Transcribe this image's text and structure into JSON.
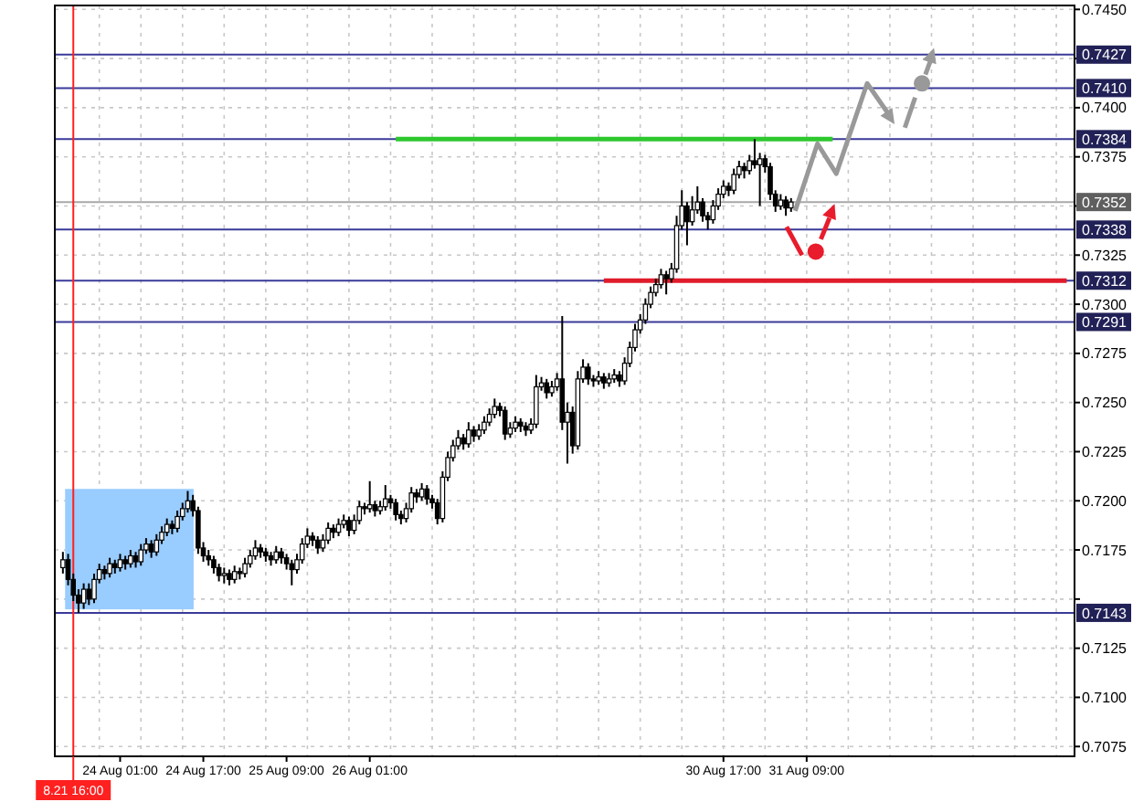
{
  "chart_data": {
    "type": "candlestick",
    "categories": [
      null,
      null,
      "8.21 16:00",
      null,
      null,
      null,
      null,
      null,
      null,
      null,
      null,
      "24 Aug 01:00",
      null,
      null,
      null,
      null,
      null,
      null,
      null,
      null,
      null,
      null,
      null,
      null,
      null,
      null,
      null,
      "24 Aug 17:00",
      null,
      null,
      null,
      null,
      null,
      null,
      null,
      null,
      null,
      null,
      null,
      null,
      null,
      null,
      null,
      "25 Aug 09:00",
      null,
      null,
      null,
      null,
      null,
      null,
      null,
      null,
      null,
      null,
      null,
      null,
      null,
      null,
      null,
      "26 Aug 01:00",
      null,
      null,
      null,
      null,
      null,
      null,
      null,
      null,
      null,
      null,
      null,
      null,
      null,
      null,
      null,
      null,
      null,
      null,
      null,
      null,
      null,
      null,
      null,
      null,
      null,
      null,
      null,
      null,
      null,
      null,
      null,
      null,
      null,
      null,
      null,
      null,
      null,
      null,
      null,
      null,
      null,
      null,
      null,
      null,
      null,
      null,
      null,
      null,
      null,
      null,
      null,
      null,
      null,
      null,
      null,
      null,
      null,
      null,
      null,
      null,
      null,
      null,
      null,
      null,
      null,
      null,
      null,
      "30 Aug 17:00",
      null,
      null,
      null,
      null,
      null,
      null,
      null,
      null,
      null,
      null,
      null,
      null,
      null,
      null,
      null,
      "31 Aug 09:00",
      null,
      null,
      null,
      null,
      null,
      null,
      null,
      null,
      null,
      null,
      null,
      null,
      null,
      null,
      null,
      null,
      null,
      null,
      null,
      null,
      null,
      null,
      null,
      null,
      null,
      null,
      null,
      null,
      null,
      null,
      null,
      null,
      null,
      null,
      null,
      null,
      null,
      null,
      null,
      null,
      null,
      null,
      null,
      null,
      null,
      null,
      null,
      null,
      null,
      null,
      null
    ],
    "ohlc": [
      [
        0.7166,
        0.7174,
        0.7163,
        0.717
      ],
      [
        0.717,
        0.7173,
        0.7157,
        0.716
      ],
      [
        0.716,
        0.7163,
        0.7149,
        0.7152
      ],
      [
        0.7152,
        0.7155,
        0.7143,
        0.7148
      ],
      [
        0.7148,
        0.7158,
        0.7145,
        0.7155
      ],
      [
        0.7155,
        0.7158,
        0.7147,
        0.715
      ],
      [
        0.715,
        0.7163,
        0.7148,
        0.716
      ],
      [
        0.716,
        0.7168,
        0.7158,
        0.7165
      ],
      [
        0.7165,
        0.7167,
        0.716,
        0.7163
      ],
      [
        0.7163,
        0.7171,
        0.7161,
        0.7168
      ],
      [
        0.7168,
        0.717,
        0.7163,
        0.7166
      ],
      [
        0.7166,
        0.7173,
        0.7164,
        0.717
      ],
      [
        0.717,
        0.7172,
        0.7165,
        0.7168
      ],
      [
        0.7168,
        0.7175,
        0.7166,
        0.7172
      ],
      [
        0.7172,
        0.7174,
        0.7166,
        0.7169
      ],
      [
        0.7169,
        0.7178,
        0.7167,
        0.7175
      ],
      [
        0.7175,
        0.7181,
        0.7173,
        0.7178
      ],
      [
        0.7178,
        0.718,
        0.7171,
        0.7174
      ],
      [
        0.7174,
        0.7183,
        0.7172,
        0.718
      ],
      [
        0.718,
        0.7187,
        0.7178,
        0.7184
      ],
      [
        0.7184,
        0.7191,
        0.7182,
        0.7188
      ],
      [
        0.7188,
        0.719,
        0.7183,
        0.7186
      ],
      [
        0.7186,
        0.7195,
        0.7184,
        0.7192
      ],
      [
        0.7192,
        0.7199,
        0.719,
        0.7196
      ],
      [
        0.7196,
        0.7205,
        0.7194,
        0.72
      ],
      [
        0.72,
        0.7203,
        0.7192,
        0.7195
      ],
      [
        0.7195,
        0.7197,
        0.7173,
        0.7176
      ],
      [
        0.7176,
        0.7179,
        0.7169,
        0.7172
      ],
      [
        0.7172,
        0.7175,
        0.7167,
        0.717
      ],
      [
        0.717,
        0.7172,
        0.7163,
        0.7166
      ],
      [
        0.7166,
        0.7168,
        0.7159,
        0.7162
      ],
      [
        0.7162,
        0.7166,
        0.7158,
        0.7163
      ],
      [
        0.7163,
        0.7165,
        0.7157,
        0.716
      ],
      [
        0.716,
        0.7167,
        0.7158,
        0.7164
      ],
      [
        0.7164,
        0.7166,
        0.716,
        0.7163
      ],
      [
        0.7163,
        0.7171,
        0.7161,
        0.7168
      ],
      [
        0.7168,
        0.7175,
        0.7166,
        0.7172
      ],
      [
        0.7172,
        0.718,
        0.717,
        0.7176
      ],
      [
        0.7176,
        0.7178,
        0.7171,
        0.7174
      ],
      [
        0.7174,
        0.7176,
        0.7169,
        0.7172
      ],
      [
        0.7172,
        0.7174,
        0.7167,
        0.717
      ],
      [
        0.717,
        0.7177,
        0.7168,
        0.7174
      ],
      [
        0.7174,
        0.7176,
        0.7168,
        0.7171
      ],
      [
        0.7171,
        0.7173,
        0.7165,
        0.7168
      ],
      [
        0.7168,
        0.717,
        0.7157,
        0.7165
      ],
      [
        0.7165,
        0.7173,
        0.7163,
        0.717
      ],
      [
        0.717,
        0.7181,
        0.7168,
        0.7178
      ],
      [
        0.7178,
        0.7186,
        0.7176,
        0.7182
      ],
      [
        0.7182,
        0.7184,
        0.7177,
        0.718
      ],
      [
        0.718,
        0.7182,
        0.7173,
        0.7176
      ],
      [
        0.7176,
        0.7183,
        0.7174,
        0.718
      ],
      [
        0.718,
        0.7189,
        0.7178,
        0.7186
      ],
      [
        0.7186,
        0.7188,
        0.7181,
        0.7184
      ],
      [
        0.7184,
        0.7191,
        0.7182,
        0.7188
      ],
      [
        0.7188,
        0.7193,
        0.7186,
        0.719
      ],
      [
        0.719,
        0.7192,
        0.7182,
        0.7185
      ],
      [
        0.7185,
        0.7193,
        0.7183,
        0.719
      ],
      [
        0.719,
        0.72,
        0.7188,
        0.7197
      ],
      [
        0.7197,
        0.7199,
        0.7193,
        0.7196
      ],
      [
        0.7196,
        0.721,
        0.7194,
        0.7198
      ],
      [
        0.7198,
        0.72,
        0.7192,
        0.7195
      ],
      [
        0.7195,
        0.72,
        0.7193,
        0.7197
      ],
      [
        0.7197,
        0.7208,
        0.7195,
        0.7201
      ],
      [
        0.7201,
        0.7203,
        0.7196,
        0.7199
      ],
      [
        0.7199,
        0.7201,
        0.719,
        0.7193
      ],
      [
        0.7193,
        0.7195,
        0.7188,
        0.7191
      ],
      [
        0.7191,
        0.7199,
        0.7189,
        0.7196
      ],
      [
        0.7196,
        0.7207,
        0.7194,
        0.7204
      ],
      [
        0.7204,
        0.7206,
        0.7199,
        0.7202
      ],
      [
        0.7202,
        0.7209,
        0.72,
        0.7206
      ],
      [
        0.7206,
        0.7208,
        0.7198,
        0.7201
      ],
      [
        0.7201,
        0.7203,
        0.7196,
        0.7199
      ],
      [
        0.7199,
        0.7201,
        0.7188,
        0.7191
      ],
      [
        0.7191,
        0.7215,
        0.7189,
        0.7212
      ],
      [
        0.7212,
        0.7225,
        0.721,
        0.7222
      ],
      [
        0.7222,
        0.7231,
        0.722,
        0.7228
      ],
      [
        0.7228,
        0.7236,
        0.7226,
        0.7232
      ],
      [
        0.7232,
        0.7234,
        0.7226,
        0.7229
      ],
      [
        0.7229,
        0.724,
        0.7227,
        0.7236
      ],
      [
        0.7236,
        0.7238,
        0.723,
        0.7233
      ],
      [
        0.7233,
        0.7239,
        0.7231,
        0.7236
      ],
      [
        0.7236,
        0.7243,
        0.7234,
        0.724
      ],
      [
        0.724,
        0.7247,
        0.7238,
        0.7244
      ],
      [
        0.7244,
        0.7252,
        0.7242,
        0.7248
      ],
      [
        0.7248,
        0.725,
        0.7243,
        0.7246
      ],
      [
        0.7246,
        0.7248,
        0.7231,
        0.7234
      ],
      [
        0.7234,
        0.724,
        0.7232,
        0.7237
      ],
      [
        0.7237,
        0.7243,
        0.7235,
        0.724
      ],
      [
        0.724,
        0.7242,
        0.7235,
        0.7238
      ],
      [
        0.7238,
        0.724,
        0.7233,
        0.7236
      ],
      [
        0.7236,
        0.7242,
        0.7234,
        0.7239
      ],
      [
        0.7239,
        0.7264,
        0.7237,
        0.7258
      ],
      [
        0.7258,
        0.7263,
        0.7256,
        0.726
      ],
      [
        0.726,
        0.7262,
        0.7252,
        0.7255
      ],
      [
        0.7255,
        0.7261,
        0.7253,
        0.7258
      ],
      [
        0.7258,
        0.7265,
        0.7256,
        0.7262
      ],
      [
        0.7262,
        0.7294,
        0.7236,
        0.724
      ],
      [
        0.724,
        0.725,
        0.7219,
        0.7245
      ],
      [
        0.7245,
        0.7248,
        0.7224,
        0.7228
      ],
      [
        0.7228,
        0.7266,
        0.7226,
        0.7262
      ],
      [
        0.7262,
        0.7272,
        0.726,
        0.7268
      ],
      [
        0.7268,
        0.727,
        0.7259,
        0.7262
      ],
      [
        0.7262,
        0.7264,
        0.7258,
        0.7261
      ],
      [
        0.7261,
        0.7266,
        0.7259,
        0.7263
      ],
      [
        0.7263,
        0.7265,
        0.7257,
        0.726
      ],
      [
        0.726,
        0.7265,
        0.7258,
        0.7262
      ],
      [
        0.7262,
        0.7267,
        0.726,
        0.7264
      ],
      [
        0.7264,
        0.7266,
        0.7258,
        0.7261
      ],
      [
        0.7261,
        0.7273,
        0.7259,
        0.727
      ],
      [
        0.727,
        0.7281,
        0.7268,
        0.7278
      ],
      [
        0.7278,
        0.729,
        0.7276,
        0.7287
      ],
      [
        0.7287,
        0.7295,
        0.7285,
        0.7292
      ],
      [
        0.7292,
        0.7303,
        0.729,
        0.73
      ],
      [
        0.73,
        0.7309,
        0.7298,
        0.7306
      ],
      [
        0.7306,
        0.7313,
        0.7304,
        0.731
      ],
      [
        0.731,
        0.7318,
        0.7308,
        0.7315
      ],
      [
        0.7315,
        0.7317,
        0.7305,
        0.7313
      ],
      [
        0.7313,
        0.7321,
        0.7311,
        0.7318
      ],
      [
        0.7318,
        0.7345,
        0.7316,
        0.734
      ],
      [
        0.734,
        0.7358,
        0.7338,
        0.735
      ],
      [
        0.735,
        0.7352,
        0.733,
        0.7342
      ],
      [
        0.7342,
        0.7355,
        0.734,
        0.7348
      ],
      [
        0.7348,
        0.736,
        0.7346,
        0.7352
      ],
      [
        0.7352,
        0.7354,
        0.7342,
        0.7345
      ],
      [
        0.7345,
        0.7347,
        0.7338,
        0.7343
      ],
      [
        0.7343,
        0.7353,
        0.7341,
        0.735
      ],
      [
        0.735,
        0.7359,
        0.7348,
        0.7356
      ],
      [
        0.7356,
        0.7363,
        0.7354,
        0.736
      ],
      [
        0.736,
        0.7362,
        0.7355,
        0.7358
      ],
      [
        0.7358,
        0.7369,
        0.7356,
        0.7366
      ],
      [
        0.7366,
        0.7373,
        0.7364,
        0.737
      ],
      [
        0.737,
        0.7372,
        0.7364,
        0.7368
      ],
      [
        0.7368,
        0.7376,
        0.7366,
        0.7373
      ],
      [
        0.7373,
        0.7384,
        0.7369,
        0.7371
      ],
      [
        0.7371,
        0.7377,
        0.735,
        0.7374
      ],
      [
        0.7374,
        0.7376,
        0.7367,
        0.737
      ],
      [
        0.737,
        0.7372,
        0.7353,
        0.7356
      ],
      [
        0.7356,
        0.7358,
        0.7347,
        0.735
      ],
      [
        0.735,
        0.7356,
        0.7348,
        0.7353
      ],
      [
        0.7353,
        0.7355,
        0.7345,
        0.7349
      ],
      [
        0.7349,
        0.7354,
        0.7347,
        0.7352
      ],
      null,
      null,
      null,
      null,
      null,
      null,
      null,
      null,
      null,
      null,
      null,
      null,
      null,
      null,
      null,
      null,
      null,
      null,
      null,
      null,
      null,
      null,
      null,
      null,
      null,
      null,
      null,
      null,
      null,
      null,
      null,
      null,
      null,
      null,
      null,
      null,
      null,
      null,
      null,
      null,
      null,
      null,
      null,
      null,
      null,
      null,
      null,
      null,
      null,
      null,
      null,
      null,
      null,
      null
    ],
    "ylim": [
      0.707,
      0.7452
    ],
    "yticks": [
      {
        "value": 0.745,
        "label": "0.7450"
      },
      {
        "value": 0.7425,
        "label": null
      },
      {
        "value": 0.74,
        "label": "0.7400"
      },
      {
        "value": 0.7375,
        "label": "0.7375"
      },
      {
        "value": 0.735,
        "label": null
      },
      {
        "value": 0.7325,
        "label": "0.7325"
      },
      {
        "value": 0.73,
        "label": "0.7300"
      },
      {
        "value": 0.7275,
        "label": "0.7275"
      },
      {
        "value": 0.725,
        "label": "0.7250"
      },
      {
        "value": 0.7225,
        "label": "0.7225"
      },
      {
        "value": 0.72,
        "label": "0.7200"
      },
      {
        "value": 0.7175,
        "label": "0.7175"
      },
      {
        "value": 0.715,
        "label": null
      },
      {
        "value": 0.7125,
        "label": "0.7125"
      },
      {
        "value": 0.71,
        "label": "0.7100"
      },
      {
        "value": 0.7075,
        "label": "0.7075"
      }
    ],
    "grid": true,
    "ref_lines": [
      {
        "axis": "y",
        "value": 0.7427,
        "label": "0.7427",
        "color": "#3a3a9a"
      },
      {
        "axis": "y",
        "value": 0.741,
        "label": "0.7410",
        "color": "#3a3a9a"
      },
      {
        "axis": "y",
        "value": 0.7384,
        "label": "0.7384",
        "color": "#3a3a9a"
      },
      {
        "axis": "y",
        "value": 0.7352,
        "label": "0.7352",
        "color": "#a8a8a8"
      },
      {
        "axis": "y",
        "value": 0.7338,
        "label": "0.7338",
        "color": "#3a3a9a"
      },
      {
        "axis": "y",
        "value": 0.7312,
        "label": "0.7312",
        "color": "#3a3a9a"
      },
      {
        "axis": "y",
        "value": 0.7291,
        "label": "0.7291",
        "color": "#3a3a9a"
      },
      {
        "axis": "y",
        "value": 0.7143,
        "label": "0.7143",
        "color": "#3a3a9a"
      },
      {
        "axis": "x",
        "value": "8.21 16:00",
        "color": "#ff2020"
      }
    ],
    "series": [
      {
        "type": "line",
        "color": "#2ec82e",
        "values": [
          null,
          null,
          null,
          null,
          null,
          null,
          null,
          null,
          null,
          null,
          null,
          null,
          null,
          null,
          null,
          null,
          null,
          null,
          null,
          null,
          null,
          null,
          null,
          null,
          null,
          null,
          null,
          null,
          null,
          null,
          null,
          null,
          null,
          null,
          null,
          null,
          null,
          null,
          null,
          null,
          null,
          null,
          null,
          null,
          null,
          null,
          null,
          null,
          null,
          null,
          null,
          null,
          null,
          null,
          null,
          null,
          null,
          null,
          null,
          null,
          null,
          null,
          null,
          null,
          0.7384,
          0.7384,
          0.7384,
          0.7384,
          0.7384,
          0.7384,
          0.7384,
          0.7384,
          0.7384,
          0.7384,
          0.7384,
          0.7384,
          0.7384,
          0.7384,
          0.7384,
          0.7384,
          0.7384,
          0.7384,
          0.7384,
          0.7384,
          0.7384,
          0.7384,
          0.7384,
          0.7384,
          0.7384,
          0.7384,
          0.7384,
          0.7384,
          0.7384,
          0.7384,
          0.7384,
          0.7384,
          0.7384,
          0.7384,
          0.7384,
          0.7384,
          0.7384,
          0.7384,
          0.7384,
          0.7384,
          0.7384,
          0.7384,
          0.7384,
          0.7384,
          0.7384,
          0.7384,
          0.7384,
          0.7384,
          0.7384,
          0.7384,
          0.7384,
          0.7384,
          0.7384,
          0.7384,
          0.7384,
          0.7384,
          0.7384,
          0.7384,
          0.7384,
          0.7384,
          0.7384,
          0.7384,
          0.7384,
          0.7384,
          0.7384,
          0.7384,
          0.7384,
          0.7384,
          0.7384,
          0.7384,
          0.7384,
          0.7384,
          0.7384,
          0.7384,
          0.7384,
          0.7384,
          0.7384,
          0.7384,
          0.7384,
          0.7384,
          0.7384,
          0.7384,
          0.7384,
          0.7384,
          0.7384,
          null,
          null,
          null,
          null,
          null,
          null,
          null,
          null,
          null,
          null,
          null,
          null,
          null,
          null,
          null,
          null,
          null,
          null,
          null,
          null,
          null,
          null,
          null,
          null,
          null,
          null,
          null,
          null,
          null,
          null,
          null,
          null,
          null,
          null,
          null,
          null,
          null,
          null,
          null,
          null,
          null,
          null,
          null,
          null,
          null,
          null
        ]
      },
      {
        "type": "line",
        "color": "#e01b2b",
        "values": [
          null,
          null,
          null,
          null,
          null,
          null,
          null,
          null,
          null,
          null,
          null,
          null,
          null,
          null,
          null,
          null,
          null,
          null,
          null,
          null,
          null,
          null,
          null,
          null,
          null,
          null,
          null,
          null,
          null,
          null,
          null,
          null,
          null,
          null,
          null,
          null,
          null,
          null,
          null,
          null,
          null,
          null,
          null,
          null,
          null,
          null,
          null,
          null,
          null,
          null,
          null,
          null,
          null,
          null,
          null,
          null,
          null,
          null,
          null,
          null,
          null,
          null,
          null,
          null,
          null,
          null,
          null,
          null,
          null,
          null,
          null,
          null,
          null,
          null,
          null,
          null,
          null,
          null,
          null,
          null,
          null,
          null,
          null,
          null,
          null,
          null,
          null,
          null,
          null,
          null,
          null,
          null,
          null,
          null,
          null,
          null,
          null,
          null,
          null,
          null,
          null,
          null,
          null,
          null,
          0.7312,
          0.7312,
          0.7312,
          0.7312,
          0.7312,
          0.7312,
          0.7312,
          0.7312,
          0.7312,
          0.7312,
          0.7312,
          0.7312,
          0.7312,
          0.7312,
          0.7312,
          0.7312,
          0.7312,
          0.7312,
          0.7312,
          0.7312,
          0.7312,
          0.7312,
          0.7312,
          0.7312,
          0.7312,
          0.7312,
          0.7312,
          0.7312,
          0.7312,
          0.7312,
          0.7312,
          0.7312,
          0.7312,
          0.7312,
          0.7312,
          0.7312,
          0.7312,
          0.7312,
          0.7312,
          0.7312,
          0.7312,
          0.7312,
          0.7312,
          0.7312,
          0.7312,
          0.7312,
          0.7312,
          0.7312,
          0.7312,
          0.7312,
          0.7312,
          0.7312,
          0.7312,
          0.7312,
          0.7312,
          0.7312,
          0.7312,
          0.7312,
          0.7312,
          0.7312,
          0.7312,
          0.7312,
          0.7312,
          0.7312,
          0.7312,
          0.7312,
          0.7312,
          0.7312,
          0.7312,
          0.7312,
          0.7312,
          0.7312,
          0.7312,
          0.7312,
          0.7312,
          0.7312,
          0.7312,
          0.7312,
          0.7312,
          0.7312,
          0.7312,
          0.7312,
          0.7312,
          0.7312,
          0.7312,
          0.7312,
          0.7312,
          0.7312,
          0.7312,
          0.7312,
          null
        ]
      }
    ]
  }
}
